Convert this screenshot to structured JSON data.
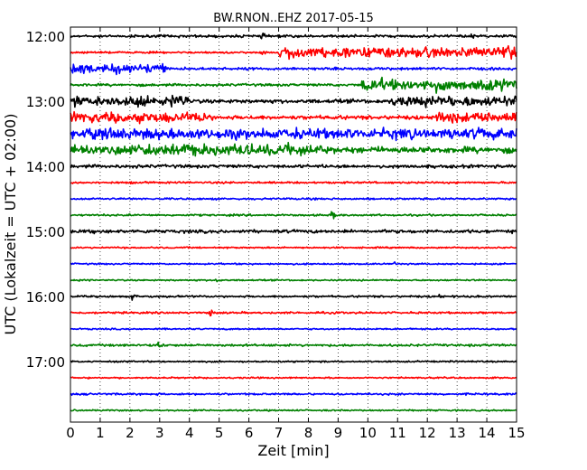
{
  "chart_data": {
    "type": "line",
    "title": "BW.RNON..EHZ 2017-05-15",
    "xlabel": "Zeit  [min]",
    "ylabel": "UTC (Lokalzeit = UTC + 02:00)",
    "xlim": [
      0,
      15
    ],
    "x_ticks": [
      "0",
      "1",
      "2",
      "3",
      "4",
      "5",
      "6",
      "7",
      "8",
      "9",
      "10",
      "11",
      "12",
      "13",
      "14",
      "15"
    ],
    "y_tick_labels": [
      "12:00",
      "13:00",
      "14:00",
      "15:00",
      "16:00",
      "17:00"
    ],
    "grid": "vertical-dotted",
    "colors": [
      "#000000",
      "#ff0000",
      "#0000ff",
      "#008000"
    ],
    "traces": [
      {
        "start": "12:00",
        "color": "#000000",
        "amplitude": 2,
        "events": [
          {
            "t": 6.4,
            "a": 6
          },
          {
            "t": 13.5,
            "a": 5
          }
        ]
      },
      {
        "start": "12:15",
        "color": "#ff0000",
        "amplitude": 1.5,
        "events": [
          {
            "t": 6.5,
            "a": 3
          }
        ],
        "bursts": [
          {
            "from": 7.0,
            "to": 15,
            "a": 9
          }
        ]
      },
      {
        "start": "12:30",
        "color": "#0000ff",
        "amplitude": 2,
        "events": [
          {
            "t": 3.1,
            "a": 11
          }
        ],
        "bursts": [
          {
            "from": 0,
            "to": 3.2,
            "a": 8
          }
        ]
      },
      {
        "start": "12:45",
        "color": "#008000",
        "amplitude": 2,
        "events": [],
        "bursts": [
          {
            "from": 9.8,
            "to": 15,
            "a": 10
          }
        ]
      },
      {
        "start": "13:00",
        "color": "#000000",
        "amplitude": 3,
        "events": [
          {
            "t": 3.8,
            "a": 8
          },
          {
            "t": 11.0,
            "a": 8
          }
        ],
        "bursts": [
          {
            "from": 0,
            "to": 4.0,
            "a": 9
          },
          {
            "from": 10.8,
            "to": 15,
            "a": 9
          }
        ]
      },
      {
        "start": "13:15",
        "color": "#ff0000",
        "amplitude": 3,
        "events": [
          {
            "t": 4.6,
            "a": 11
          },
          {
            "t": 12.4,
            "a": 12
          }
        ],
        "bursts": [
          {
            "from": 0,
            "to": 4.6,
            "a": 9
          },
          {
            "from": 12.3,
            "to": 15,
            "a": 10
          }
        ]
      },
      {
        "start": "13:30",
        "color": "#0000ff",
        "amplitude": 5,
        "events": [],
        "bursts": [
          {
            "from": 0,
            "to": 15,
            "a": 9
          }
        ]
      },
      {
        "start": "13:45",
        "color": "#008000",
        "amplitude": 5,
        "events": [
          {
            "t": 8.4,
            "a": 11
          }
        ],
        "bursts": [
          {
            "from": 0,
            "to": 8.5,
            "a": 10
          }
        ]
      },
      {
        "start": "14:00",
        "color": "#000000",
        "amplitude": 2.5,
        "events": [
          {
            "t": 11.5,
            "a": 3
          }
        ]
      },
      {
        "start": "14:15",
        "color": "#ff0000",
        "amplitude": 1.5,
        "events": [
          {
            "t": 2.0,
            "a": 3
          }
        ]
      },
      {
        "start": "14:30",
        "color": "#0000ff",
        "amplitude": 1.5,
        "events": []
      },
      {
        "start": "14:45",
        "color": "#008000",
        "amplitude": 1.5,
        "events": [
          {
            "t": 8.8,
            "a": 7
          }
        ]
      },
      {
        "start": "15:00",
        "color": "#000000",
        "amplitude": 2.5,
        "events": [
          {
            "t": 0.8,
            "a": 4
          },
          {
            "t": 2.5,
            "a": 5
          }
        ]
      },
      {
        "start": "15:15",
        "color": "#ff0000",
        "amplitude": 1.2,
        "events": []
      },
      {
        "start": "15:30",
        "color": "#0000ff",
        "amplitude": 1.2,
        "events": [
          {
            "t": 10.9,
            "a": 3
          }
        ]
      },
      {
        "start": "15:45",
        "color": "#008000",
        "amplitude": 1.2,
        "events": [
          {
            "t": 4.9,
            "a": 5
          }
        ]
      },
      {
        "start": "16:00",
        "color": "#000000",
        "amplitude": 1.5,
        "events": [
          {
            "t": 2.1,
            "a": 5
          },
          {
            "t": 7.2,
            "a": 3
          },
          {
            "t": 12.4,
            "a": 4
          }
        ]
      },
      {
        "start": "16:15",
        "color": "#ff0000",
        "amplitude": 1.5,
        "events": [
          {
            "t": 4.7,
            "a": 6
          },
          {
            "t": 8.9,
            "a": 3
          }
        ]
      },
      {
        "start": "16:30",
        "color": "#0000ff",
        "amplitude": 1.2,
        "events": []
      },
      {
        "start": "16:45",
        "color": "#008000",
        "amplitude": 1.8,
        "events": [
          {
            "t": 3.0,
            "a": 7
          },
          {
            "t": 2.3,
            "a": 3
          }
        ]
      },
      {
        "start": "17:00",
        "color": "#000000",
        "amplitude": 1.2,
        "events": []
      },
      {
        "start": "17:15",
        "color": "#ff0000",
        "amplitude": 1.2,
        "events": []
      },
      {
        "start": "17:30",
        "color": "#0000ff",
        "amplitude": 1.5,
        "events": []
      },
      {
        "start": "17:45",
        "color": "#008000",
        "amplitude": 1.2,
        "events": []
      }
    ]
  }
}
